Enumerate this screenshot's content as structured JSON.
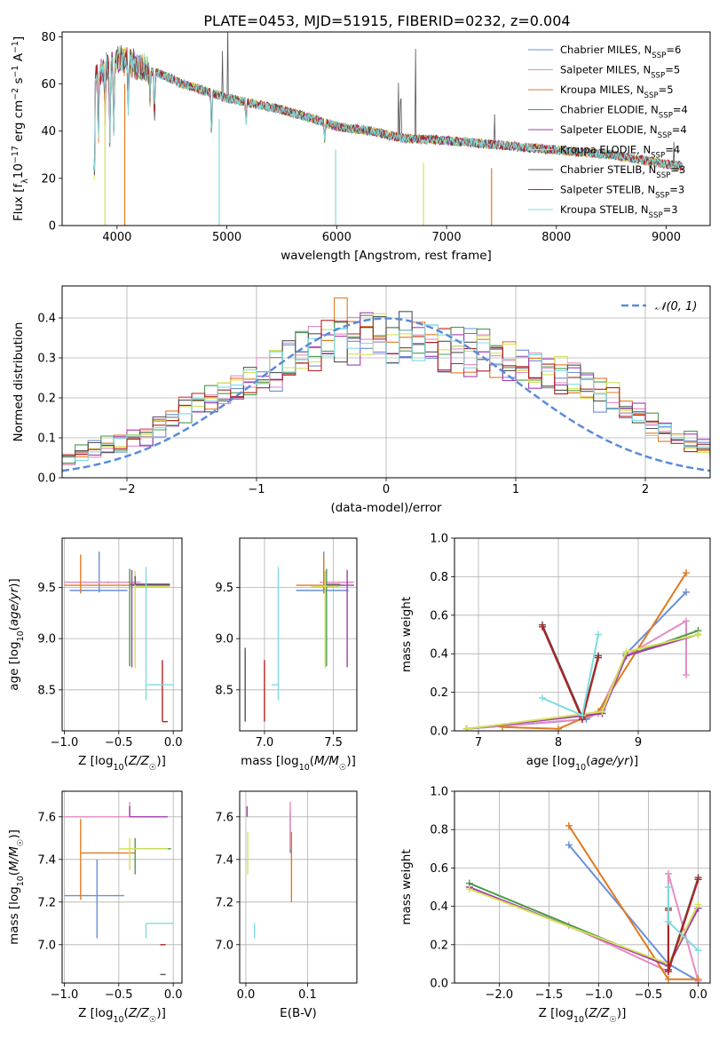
{
  "figure": {
    "title": "PLATE=0453, MJD=51915, FIBERID=0232, z=0.004",
    "colors": [
      "#6a8fdb",
      "#e58cc2",
      "#e07a20",
      "#4c9a4c",
      "#a63cb0",
      "#d4e157",
      "#555555",
      "#b22222",
      "#7fdbe0"
    ]
  },
  "chart_data": [
    {
      "id": "spectrum",
      "type": "line",
      "xlabel": "wavelength [Angstrom, rest frame]",
      "ylabel": "Flux [f$_{\\lambda}$10$^{-17}$ erg cm$^{-2}$ s$^{-1}$ A$^{-1}$]",
      "xlim": [
        3500,
        9400
      ],
      "ylim": [
        0,
        82
      ],
      "xticks": [
        4000,
        5000,
        6000,
        7000,
        8000,
        9000
      ],
      "yticks": [
        0,
        20,
        40,
        60,
        80
      ],
      "grid": false,
      "legend_position": "top-right",
      "series": [
        {
          "name": "Chabrier MILES, N",
          "sub": "SSP",
          "suffix": "=6"
        },
        {
          "name": "Salpeter MILES, N",
          "sub": "SSP",
          "suffix": "=5"
        },
        {
          "name": "Kroupa MILES, N",
          "sub": "SSP",
          "suffix": "=5"
        },
        {
          "name": "Chabrier ELODIE, N",
          "sub": "SSP",
          "suffix": "=4"
        },
        {
          "name": "Salpeter ELODIE, N",
          "sub": "SSP",
          "suffix": "=4"
        },
        {
          "name": "Kroupa ELODIE, N",
          "sub": "SSP",
          "suffix": "=4"
        },
        {
          "name": "Chabrier STELIB, N",
          "sub": "SSP",
          "suffix": "=3"
        },
        {
          "name": "Salpeter STELIB, N",
          "sub": "SSP",
          "suffix": "=3"
        },
        {
          "name": "Kroupa STELIB, N",
          "sub": "SSP",
          "suffix": "=3"
        }
      ],
      "continuum": [
        [
          3800,
          62
        ],
        [
          3900,
          67
        ],
        [
          4000,
          70
        ],
        [
          4100,
          70
        ],
        [
          4200,
          67
        ],
        [
          4400,
          64
        ],
        [
          4600,
          60
        ],
        [
          4800,
          57
        ],
        [
          5000,
          54
        ],
        [
          5200,
          52
        ],
        [
          5500,
          49
        ],
        [
          5800,
          45
        ],
        [
          6000,
          42
        ],
        [
          6300,
          40
        ],
        [
          6600,
          37
        ],
        [
          7000,
          36
        ],
        [
          7500,
          34
        ],
        [
          8000,
          32
        ],
        [
          8500,
          30
        ],
        [
          9000,
          26
        ],
        [
          9150,
          25
        ]
      ]
    },
    {
      "id": "residuals",
      "type": "step",
      "xlabel": "(data-model)/error",
      "ylabel": "Normed distribution",
      "xlim": [
        -2.5,
        2.5
      ],
      "ylim": [
        0,
        0.48
      ],
      "xticks": [
        -2,
        -1,
        0,
        1,
        2
      ],
      "yticks": [
        0.0,
        0.1,
        0.2,
        0.3,
        0.4
      ],
      "grid": true,
      "legend_position": "top-right",
      "legend_label": "𝒩(0, 1)",
      "bin_width": 0.1,
      "base_hist": [
        0.05,
        0.06,
        0.07,
        0.08,
        0.09,
        0.1,
        0.11,
        0.13,
        0.15,
        0.17,
        0.18,
        0.19,
        0.21,
        0.22,
        0.24,
        0.26,
        0.28,
        0.3,
        0.32,
        0.33,
        0.34,
        0.34,
        0.35,
        0.35,
        0.35,
        0.35,
        0.35,
        0.34,
        0.34,
        0.33,
        0.32,
        0.31,
        0.31,
        0.3,
        0.29,
        0.28,
        0.27,
        0.26,
        0.25,
        0.24,
        0.23,
        0.21,
        0.2,
        0.18,
        0.16,
        0.14,
        0.12,
        0.1,
        0.09,
        0.08,
        0.07,
        0.06,
        0.05,
        0.04,
        0.04,
        0.03,
        0.03,
        0.03,
        0.02,
        0.02
      ]
    },
    {
      "id": "age_vs_Z",
      "type": "errorbar",
      "xlabel": "Z [log$_{10}$($Z/Z_{\\odot}$)]",
      "ylabel": "age  [log$_{10}$($age/yr$)]",
      "xlim": [
        -1.02,
        0.08
      ],
      "ylim": [
        8.1,
        9.98
      ],
      "xticks": [
        -1.0,
        -0.5,
        0.0
      ],
      "yticks": [
        8.5,
        9.0,
        9.5
      ],
      "grid": true,
      "points": [
        {
          "c": 0,
          "x": -0.68,
          "y": 9.47,
          "xerr": [
            0.27,
            0.26
          ],
          "yerr": [
            0.02,
            0.38
          ]
        },
        {
          "c": 1,
          "x": -0.6,
          "y": 9.55,
          "xerr": [
            0.4,
            0.3
          ],
          "yerr": [
            0.01,
            0.01
          ]
        },
        {
          "c": 2,
          "x": -0.85,
          "y": 9.52,
          "xerr": [
            0.15,
            0.55
          ],
          "yerr": [
            0.08,
            0.3
          ]
        },
        {
          "c": 3,
          "x": -0.4,
          "y": 9.53,
          "xerr": [
            0.0,
            0.35
          ],
          "yerr": [
            0.8,
            0.15
          ]
        },
        {
          "c": 4,
          "x": -0.38,
          "y": 9.52,
          "xerr": [
            0.0,
            0.35
          ],
          "yerr": [
            0.8,
            0.15
          ]
        },
        {
          "c": 5,
          "x": -0.35,
          "y": 9.51,
          "xerr": [
            0.0,
            0.32
          ],
          "yerr": [
            0.8,
            0.15
          ]
        },
        {
          "c": 6,
          "x": -0.35,
          "y": 9.53,
          "xerr": [
            0.0,
            0.32
          ],
          "yerr": [
            0.0,
            0.08
          ]
        },
        {
          "c": 7,
          "x": -0.1,
          "y": 8.19,
          "xerr": [
            0.0,
            0.05
          ],
          "yerr": [
            0.0,
            0.6
          ]
        },
        {
          "c": 8,
          "x": -0.25,
          "y": 8.55,
          "xerr": [
            0.0,
            0.25
          ],
          "yerr": [
            0.15,
            1.15
          ]
        }
      ]
    },
    {
      "id": "age_vs_mass",
      "type": "errorbar",
      "xlabel": "mass [log$_{10}$($M/M_{\\odot}$)]",
      "ylabel": "",
      "xlim": [
        6.82,
        7.67
      ],
      "ylim": [
        8.1,
        9.98
      ],
      "xticks": [
        7.0,
        7.5
      ],
      "yticks": [
        8.5,
        9.0,
        9.5
      ],
      "grid": true,
      "points": [
        {
          "c": 0,
          "x": 7.43,
          "y": 9.47,
          "xerr": [
            0.2,
            0.18
          ],
          "yerr": [
            0.02,
            0.38
          ]
        },
        {
          "c": 1,
          "x": 7.6,
          "y": 9.55,
          "xerr": [
            0.2,
            0.05
          ],
          "yerr": [
            0.01,
            0.01
          ]
        },
        {
          "c": 2,
          "x": 7.43,
          "y": 9.52,
          "xerr": [
            0.2,
            0.15
          ],
          "yerr": [
            0.08,
            0.3
          ]
        },
        {
          "c": 3,
          "x": 7.45,
          "y": 9.53,
          "xerr": [
            0.0,
            0.1
          ],
          "yerr": [
            0.8,
            0.15
          ]
        },
        {
          "c": 4,
          "x": 7.6,
          "y": 9.52,
          "xerr": [
            0.15,
            0.05
          ],
          "yerr": [
            0.8,
            0.15
          ]
        },
        {
          "c": 5,
          "x": 7.44,
          "y": 9.51,
          "xerr": [
            0.1,
            0.1
          ],
          "yerr": [
            0.8,
            0.15
          ]
        },
        {
          "c": 6,
          "x": 6.86,
          "y": 8.19,
          "xerr": [
            0.0,
            0.0
          ],
          "yerr": [
            0.0,
            0.72
          ]
        },
        {
          "c": 7,
          "x": 7.0,
          "y": 8.19,
          "xerr": [
            0.0,
            0.0
          ],
          "yerr": [
            0.0,
            0.6
          ]
        },
        {
          "c": 8,
          "x": 7.1,
          "y": 8.55,
          "xerr": [
            0.05,
            0.0
          ],
          "yerr": [
            0.15,
            1.15
          ]
        }
      ]
    },
    {
      "id": "weight_vs_age",
      "type": "line",
      "xlabel": "age  [log$_{10}$($age/yr$)]",
      "ylabel": "mass weight",
      "xlim": [
        6.7,
        9.9
      ],
      "ylim": [
        0,
        1.0
      ],
      "xticks": [
        7,
        8,
        9
      ],
      "yticks": [
        0.0,
        0.2,
        0.4,
        0.6,
        0.8,
        1.0
      ],
      "grid": true,
      "series": [
        {
          "c": 0,
          "x": [
            6.85,
            8.35,
            8.55,
            8.85,
            9.6
          ],
          "y": [
            0.01,
            0.06,
            0.11,
            0.4,
            0.72
          ]
        },
        {
          "c": 1,
          "x": [
            6.85,
            8.3,
            8.5,
            8.85,
            9.6,
            9.6
          ],
          "y": [
            0.01,
            0.06,
            0.09,
            0.39,
            0.57,
            0.29
          ]
        },
        {
          "c": 2,
          "x": [
            7.3,
            8.0,
            8.5,
            9.6
          ],
          "y": [
            0.02,
            0.01,
            0.1,
            0.82
          ]
        },
        {
          "c": 3,
          "x": [
            6.85,
            8.55,
            8.85,
            9.75
          ],
          "y": [
            0.01,
            0.09,
            0.39,
            0.52
          ]
        },
        {
          "c": 4,
          "x": [
            6.85,
            8.55,
            8.85,
            9.75
          ],
          "y": [
            0.01,
            0.09,
            0.39,
            0.5
          ]
        },
        {
          "c": 5,
          "x": [
            6.85,
            8.55,
            8.85,
            9.75
          ],
          "y": [
            0.01,
            0.1,
            0.41,
            0.5
          ]
        },
        {
          "c": 6,
          "x": [
            7.8,
            8.3,
            8.5
          ],
          "y": [
            0.55,
            0.07,
            0.39
          ]
        },
        {
          "c": 7,
          "x": [
            7.8,
            8.3,
            8.5
          ],
          "y": [
            0.54,
            0.06,
            0.38
          ]
        },
        {
          "c": 8,
          "x": [
            7.8,
            8.3,
            8.5
          ],
          "y": [
            0.17,
            0.08,
            0.5
          ]
        }
      ]
    },
    {
      "id": "mass_vs_Z",
      "type": "errorbar",
      "xlabel": "Z [log$_{10}$($Z/Z_{\\odot}$)]",
      "ylabel": "mass [log$_{10}$($M/M_{\\odot}$)]",
      "xlim": [
        -1.02,
        0.08
      ],
      "ylim": [
        6.82,
        7.72
      ],
      "xticks": [
        -1.0,
        -0.5,
        0.0
      ],
      "yticks": [
        7.0,
        7.2,
        7.4,
        7.6
      ],
      "grid": true,
      "points": [
        {
          "c": 0,
          "x": -0.7,
          "y": 7.23,
          "xerr": [
            0.3,
            0.25
          ],
          "yerr": [
            0.2,
            0.17
          ]
        },
        {
          "c": 1,
          "x": -0.4,
          "y": 7.6,
          "xerr": [
            0.6,
            0.25
          ],
          "yerr": [
            0.0,
            0.07
          ]
        },
        {
          "c": 2,
          "x": -0.85,
          "y": 7.43,
          "xerr": [
            0.0,
            0.5
          ],
          "yerr": [
            0.22,
            0.16
          ]
        },
        {
          "c": 3,
          "x": -0.35,
          "y": 7.45,
          "xerr": [
            0.0,
            0.33
          ],
          "yerr": [
            0.12,
            0.05
          ]
        },
        {
          "c": 4,
          "x": -0.4,
          "y": 7.6,
          "xerr": [
            0.0,
            0.35
          ],
          "yerr": [
            0.0,
            0.05
          ]
        },
        {
          "c": 5,
          "x": -0.4,
          "y": 7.45,
          "xerr": [
            0.1,
            0.35
          ],
          "yerr": [
            0.1,
            0.05
          ]
        },
        {
          "c": 6,
          "x": -0.12,
          "y": 6.86,
          "xerr": [
            0.0,
            0.05
          ],
          "yerr": [
            0.0,
            0.0
          ]
        },
        {
          "c": 7,
          "x": -0.12,
          "y": 7.0,
          "xerr": [
            0.0,
            0.05
          ],
          "yerr": [
            0.0,
            0.0
          ]
        },
        {
          "c": 8,
          "x": -0.25,
          "y": 7.1,
          "xerr": [
            0.0,
            0.25
          ],
          "yerr": [
            0.07,
            0.0
          ]
        }
      ]
    },
    {
      "id": "mass_vs_ebv",
      "type": "errorbar",
      "xlabel": "E(B-V)",
      "ylabel": "",
      "xlim": [
        -0.01,
        0.18
      ],
      "ylim": [
        6.82,
        7.72
      ],
      "xticks": [
        0.0,
        0.1
      ],
      "yticks": [
        7.0,
        7.2,
        7.4,
        7.6
      ],
      "grid": true,
      "points": [
        {
          "c": 0,
          "x": 0.072,
          "y": 7.43,
          "xerr": [
            0.0,
            0.0
          ],
          "yerr": [
            0.0,
            0.2
          ]
        },
        {
          "c": 1,
          "x": 0.072,
          "y": 7.6,
          "xerr": [
            0.0,
            0.0
          ],
          "yerr": [
            0.15,
            0.07
          ]
        },
        {
          "c": 2,
          "x": 0.074,
          "y": 7.43,
          "xerr": [
            0.0,
            0.0
          ],
          "yerr": [
            0.23,
            0.1
          ]
        },
        {
          "c": 4,
          "x": 0.002,
          "y": 7.6,
          "xerr": [
            0.0,
            0.0
          ],
          "yerr": [
            0.0,
            0.05
          ]
        },
        {
          "c": 5,
          "x": 0.003,
          "y": 7.45,
          "xerr": [
            0.0,
            0.0
          ],
          "yerr": [
            0.12,
            0.08
          ]
        },
        {
          "c": 8,
          "x": 0.014,
          "y": 7.1,
          "xerr": [
            0.0,
            0.0
          ],
          "yerr": [
            0.07,
            0.0
          ]
        }
      ]
    },
    {
      "id": "weight_vs_Z",
      "type": "line",
      "xlabel": "Z [log$_{10}$($Z/Z_{\\odot}$)]",
      "ylabel": "mass weight",
      "xlim": [
        -2.45,
        0.12
      ],
      "ylim": [
        0,
        1.0
      ],
      "xticks": [
        -2.0,
        -1.5,
        -1.0,
        -0.5,
        0.0
      ],
      "yticks": [
        0.0,
        0.2,
        0.4,
        0.6,
        0.8,
        1.0
      ],
      "grid": true,
      "series": [
        {
          "c": 0,
          "x": [
            -1.3,
            -0.3,
            0.0
          ],
          "y": [
            0.72,
            0.1,
            0.01
          ]
        },
        {
          "c": 1,
          "x": [
            -1.3,
            -0.3,
            -0.3,
            0.0
          ],
          "y": [
            0.3,
            0.06,
            0.57,
            0.01
          ]
        },
        {
          "c": 2,
          "x": [
            -1.3,
            -0.3,
            0.0
          ],
          "y": [
            0.82,
            0.02,
            0.02
          ]
        },
        {
          "c": 3,
          "x": [
            -2.3,
            -0.3,
            0.0
          ],
          "y": [
            0.52,
            0.09,
            0.39
          ]
        },
        {
          "c": 4,
          "x": [
            -2.3,
            -0.3,
            0.0
          ],
          "y": [
            0.5,
            0.09,
            0.39
          ]
        },
        {
          "c": 5,
          "x": [
            -2.3,
            -0.3,
            0.0
          ],
          "y": [
            0.49,
            0.1,
            0.41
          ]
        },
        {
          "c": 6,
          "x": [
            -0.3,
            -0.3,
            0.0
          ],
          "y": [
            0.39,
            0.07,
            0.55
          ]
        },
        {
          "c": 7,
          "x": [
            -0.3,
            -0.3,
            0.0
          ],
          "y": [
            0.38,
            0.06,
            0.54
          ]
        },
        {
          "c": 8,
          "x": [
            -0.3,
            -0.3,
            0.0
          ],
          "y": [
            0.5,
            0.32,
            0.17
          ]
        }
      ]
    }
  ]
}
